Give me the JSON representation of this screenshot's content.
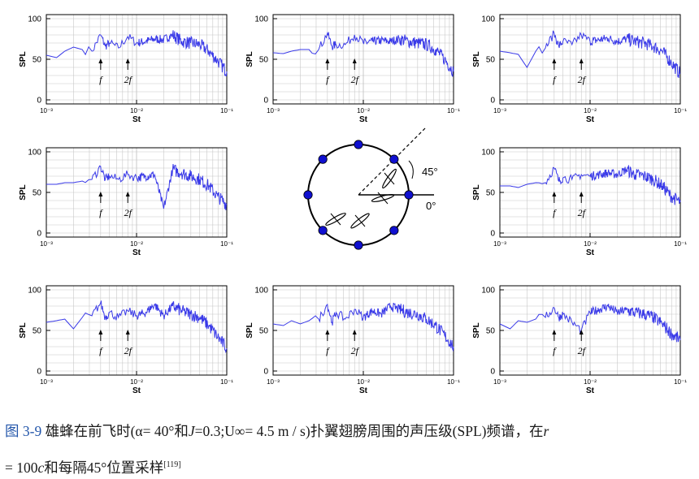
{
  "chart_data": {
    "type": "line",
    "layout": "3x3 grid of SPL spectra around a central schematic; 8 measurement positions spaced every 45 degrees",
    "panel_common": {
      "xlabel": "St",
      "ylabel": "SPL",
      "xscale": "log",
      "xlim": [
        0.001,
        0.1
      ],
      "xticks": [
        "10⁻³",
        "10⁻²",
        "10⁻¹"
      ],
      "ylim": [
        -5,
        105
      ],
      "yticks": [
        "0",
        "50",
        "100"
      ],
      "grid": true,
      "annotations": [
        {
          "text": "f",
          "x": 0.004
        },
        {
          "text": "2f",
          "x": 0.008
        }
      ]
    },
    "panels": [
      {
        "position": "top-left",
        "x": [
          0.001,
          0.0013,
          0.0016,
          0.002,
          0.0025,
          0.0032,
          0.004,
          0.0045,
          0.005,
          0.0063,
          0.008,
          0.01,
          0.0126,
          0.0158,
          0.02,
          0.0251,
          0.0316,
          0.0398,
          0.0501,
          0.0631,
          0.0794,
          0.1
        ],
        "y": [
          55,
          52,
          60,
          65,
          62,
          60,
          80,
          66,
          70,
          64,
          78,
          70,
          72,
          75,
          74,
          80,
          72,
          70,
          68,
          60,
          48,
          35
        ]
      },
      {
        "position": "top-center",
        "x": [
          0.001,
          0.0013,
          0.0016,
          0.002,
          0.0025,
          0.0032,
          0.004,
          0.0045,
          0.005,
          0.0063,
          0.008,
          0.01,
          0.0126,
          0.0158,
          0.02,
          0.0251,
          0.0316,
          0.0398,
          0.0501,
          0.0631,
          0.0794,
          0.1
        ],
        "y": [
          58,
          57,
          60,
          62,
          62,
          62,
          82,
          66,
          68,
          68,
          80,
          70,
          72,
          73,
          72,
          75,
          72,
          70,
          68,
          62,
          50,
          35
        ]
      },
      {
        "position": "top-right",
        "x": [
          0.001,
          0.0013,
          0.0016,
          0.002,
          0.0025,
          0.0032,
          0.004,
          0.0045,
          0.005,
          0.0063,
          0.008,
          0.01,
          0.0126,
          0.0158,
          0.02,
          0.0251,
          0.0316,
          0.0398,
          0.0501,
          0.0631,
          0.0794,
          0.1
        ],
        "y": [
          60,
          58,
          56,
          40,
          60,
          64,
          82,
          66,
          72,
          68,
          80,
          72,
          74,
          76,
          72,
          75,
          72,
          70,
          66,
          60,
          46,
          32
        ]
      },
      {
        "position": "middle-left",
        "x": [
          0.001,
          0.0013,
          0.0016,
          0.002,
          0.0025,
          0.0032,
          0.004,
          0.0045,
          0.005,
          0.0063,
          0.008,
          0.01,
          0.0126,
          0.0158,
          0.02,
          0.0251,
          0.0316,
          0.0398,
          0.0501,
          0.0631,
          0.0794,
          0.1
        ],
        "y": [
          60,
          60,
          62,
          62,
          64,
          66,
          82,
          66,
          70,
          66,
          72,
          68,
          70,
          72,
          30,
          78,
          74,
          70,
          66,
          58,
          45,
          35
        ]
      },
      {
        "position": "middle-right",
        "x": [
          0.001,
          0.0013,
          0.0016,
          0.002,
          0.0025,
          0.0032,
          0.004,
          0.0045,
          0.005,
          0.0063,
          0.008,
          0.01,
          0.0126,
          0.0158,
          0.02,
          0.0251,
          0.0316,
          0.0398,
          0.0501,
          0.0631,
          0.0794,
          0.1
        ],
        "y": [
          58,
          58,
          56,
          60,
          62,
          62,
          80,
          64,
          68,
          66,
          72,
          70,
          72,
          74,
          72,
          78,
          72,
          70,
          66,
          58,
          45,
          38
        ]
      },
      {
        "position": "bottom-left",
        "x": [
          0.001,
          0.0013,
          0.0016,
          0.002,
          0.0025,
          0.0032,
          0.004,
          0.0045,
          0.005,
          0.0063,
          0.008,
          0.01,
          0.0126,
          0.0158,
          0.02,
          0.0251,
          0.0316,
          0.0398,
          0.0501,
          0.0631,
          0.0794,
          0.1
        ],
        "y": [
          60,
          62,
          64,
          52,
          66,
          68,
          84,
          66,
          72,
          66,
          74,
          68,
          72,
          82,
          68,
          80,
          74,
          70,
          66,
          56,
          42,
          28
        ]
      },
      {
        "position": "bottom-center",
        "x": [
          0.001,
          0.0013,
          0.0016,
          0.002,
          0.0025,
          0.0032,
          0.004,
          0.0045,
          0.005,
          0.0063,
          0.008,
          0.01,
          0.0126,
          0.0158,
          0.02,
          0.0251,
          0.0316,
          0.0398,
          0.0501,
          0.0631,
          0.0794,
          0.1
        ],
        "y": [
          58,
          56,
          62,
          58,
          62,
          64,
          82,
          60,
          72,
          64,
          76,
          66,
          74,
          70,
          80,
          76,
          72,
          70,
          64,
          56,
          44,
          30
        ]
      },
      {
        "position": "bottom-right",
        "x": [
          0.001,
          0.0013,
          0.0016,
          0.002,
          0.0025,
          0.0032,
          0.004,
          0.0045,
          0.005,
          0.0063,
          0.008,
          0.01,
          0.0126,
          0.0158,
          0.02,
          0.0251,
          0.0316,
          0.0398,
          0.0501,
          0.0631,
          0.0794,
          0.1
        ],
        "y": [
          58,
          52,
          62,
          60,
          64,
          66,
          78,
          66,
          70,
          60,
          50,
          72,
          76,
          80,
          72,
          75,
          72,
          70,
          66,
          58,
          46,
          38
        ]
      }
    ]
  },
  "schematic": {
    "angle_labels": [
      "45°",
      "0°"
    ],
    "marker_count": 8,
    "marker_color": "#1010d0",
    "line_color": "#000000"
  },
  "colors": {
    "series": "#3a3ae8",
    "grid": "#c8c8c8",
    "caption_label": "#2255aa"
  },
  "caption": {
    "label": "图 3-9",
    "part1": " 雄蜂在前飞时(α= 40°和",
    "J": "J",
    "part2": "=0.3;U∞= 4.5 m / s)扑翼翅膀周围的声压级(SPL)频谱，在",
    "r": "r",
    "part3": "= 100",
    "c": "c",
    "part4": "和每隔45°位置采样",
    "ref": "[119]"
  }
}
